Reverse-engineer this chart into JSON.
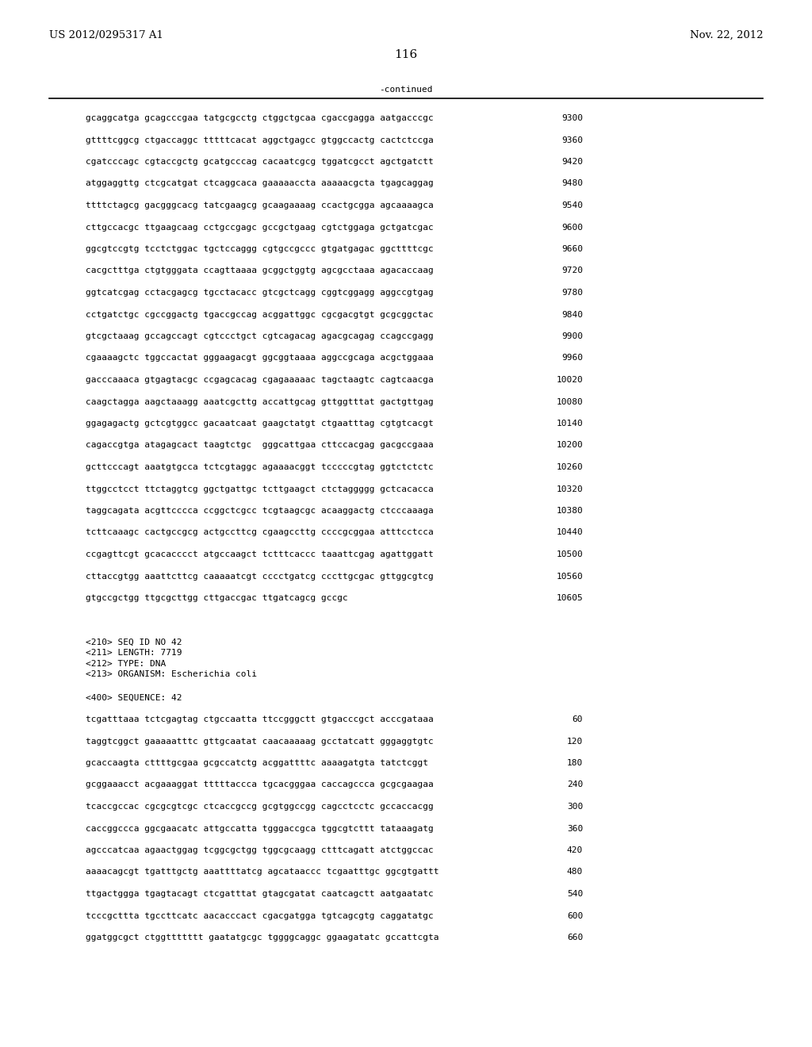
{
  "header_left": "US 2012/0295317 A1",
  "header_right": "Nov. 22, 2012",
  "page_number": "116",
  "continued_label": "-continued",
  "background_color": "#ffffff",
  "text_color": "#000000",
  "font_size_header": 9.5,
  "font_size_body": 8.0,
  "font_size_page": 11,
  "sequence_lines": [
    [
      "gcaggcatga gcagcccgaa tatgcgcctg ctggctgcaa cgaccgagga aatgacccgc",
      "9300"
    ],
    [
      "gttttcggcg ctgaccaggc tttttcacat aggctgagcc gtggccactg cactctccga",
      "9360"
    ],
    [
      "cgatcccagc cgtaccgctg gcatgcccag cacaatcgcg tggatcgcct agctgatctt",
      "9420"
    ],
    [
      "atggaggttg ctcgcatgat ctcaggcaca gaaaaaccta aaaaacgcta tgagcaggag",
      "9480"
    ],
    [
      "ttttctagcg gacgggcacg tatcgaagcg gcaagaaaag ccactgcgga agcaaaagca",
      "9540"
    ],
    [
      "cttgccacgc ttgaagcaag cctgccgagc gccgctgaag cgtctggaga gctgatcgac",
      "9600"
    ],
    [
      "ggcgtccgtg tcctctggac tgctccaggg cgtgccgccc gtgatgagac ggcttttcgc",
      "9660"
    ],
    [
      "cacgctttga ctgtgggata ccagttaaaa gcggctggtg agcgcctaaa agacaccaag",
      "9720"
    ],
    [
      "ggtcatcgag cctacgagcg tgcctacacc gtcgctcagg cggtcggagg aggccgtgag",
      "9780"
    ],
    [
      "cctgatctgc cgccggactg tgaccgccag acggattggc cgcgacgtgt gcgcggctac",
      "9840"
    ],
    [
      "gtcgctaaag gccagccagt cgtccctgct cgtcagacag agacgcagag ccagccgagg",
      "9900"
    ],
    [
      "cgaaaagctc tggccactat gggaagacgt ggcggtaaaa aggccgcaga acgctggaaa",
      "9960"
    ],
    [
      "gacccaaaca gtgagtacgc ccgagcacag cgagaaaaac tagctaagtc cagtcaacga",
      "10020"
    ],
    [
      "caagctagga aagctaaagg aaatcgcttg accattgcag gttggtttat gactgttgag",
      "10080"
    ],
    [
      "ggagagactg gctcgtggcc gacaatcaat gaagctatgt ctgaatttag cgtgtcacgt",
      "10140"
    ],
    [
      "cagaccgtga atagagcact taagtctgc  gggcattgaa cttccacgag gacgccgaaa",
      "10200"
    ],
    [
      "gcttcccagt aaatgtgcca tctcgtaggc agaaaacggt tcccccgtag ggtctctctc",
      "10260"
    ],
    [
      "ttggcctcct ttctaggtcg ggctgattgc tcttgaagct ctctaggggg gctcacacca",
      "10320"
    ],
    [
      "taggcagata acgttcccca ccggctcgcc tcgtaagcgc acaaggactg ctcccaaaga",
      "10380"
    ],
    [
      "tcttcaaagc cactgccgcg actgccttcg cgaagccttg ccccgcggaa atttcctcca",
      "10440"
    ],
    [
      "ccgagttcgt gcacacccct atgccaagct tctttcaccc taaattcgag agattggatt",
      "10500"
    ],
    [
      "cttaccgtgg aaattcttcg caaaaatcgt cccctgatcg cccttgcgac gttggcgtcg",
      "10560"
    ],
    [
      "gtgccgctgg ttgcgcttgg cttgaccgac ttgatcagcg gccgc",
      "10605"
    ]
  ],
  "metadata_lines": [
    "<210> SEQ ID NO 42",
    "<211> LENGTH: 7719",
    "<212> TYPE: DNA",
    "<213> ORGANISM: Escherichia coli"
  ],
  "sequence_label": "<400> SEQUENCE: 42",
  "sequence2_lines": [
    [
      "tcgatttaaa tctcgagtag ctgccaatta ttccgggctt gtgacccgct acccgataaa",
      "60"
    ],
    [
      "taggtcggct gaaaaatttc gttgcaatat caacaaaaag gcctatcatt gggaggtgtc",
      "120"
    ],
    [
      "gcaccaagta cttttgcgaa gcgccatctg acggattttc aaaagatgta tatctcggt",
      "180"
    ],
    [
      "gcggaaacct acgaaaggat tttttaccca tgcacgggaa caccagccca gcgcgaagaa",
      "240"
    ],
    [
      "tcaccgccac cgcgcgtcgc ctcaccgccg gcgtggccgg cagcctcctc gccaccacgg",
      "300"
    ],
    [
      "caccggccca ggcgaacatc attgccatta tgggaccgca tggcgtcttt tataaagatg",
      "360"
    ],
    [
      "agcccatcaa agaactggag tcggcgctgg tggcgcaagg ctttcagatt atctggccac",
      "420"
    ],
    [
      "aaaacagcgt tgatttgctg aaattttatcg agcataaccc tcgaatttgc ggcgtgattt",
      "480"
    ],
    [
      "ttgactggga tgagtacagt ctcgatttat gtagcgatat caatcagctt aatgaatatc",
      "540"
    ],
    [
      "tcccgcttta tgccttcatc aacacccact cgacgatgga tgtcagcgtg caggatatgc",
      "600"
    ],
    [
      "ggatggcgct ctggttttttt gaatatgcgc tggggcaggc ggaagatatc gccattcgta",
      "660"
    ]
  ]
}
